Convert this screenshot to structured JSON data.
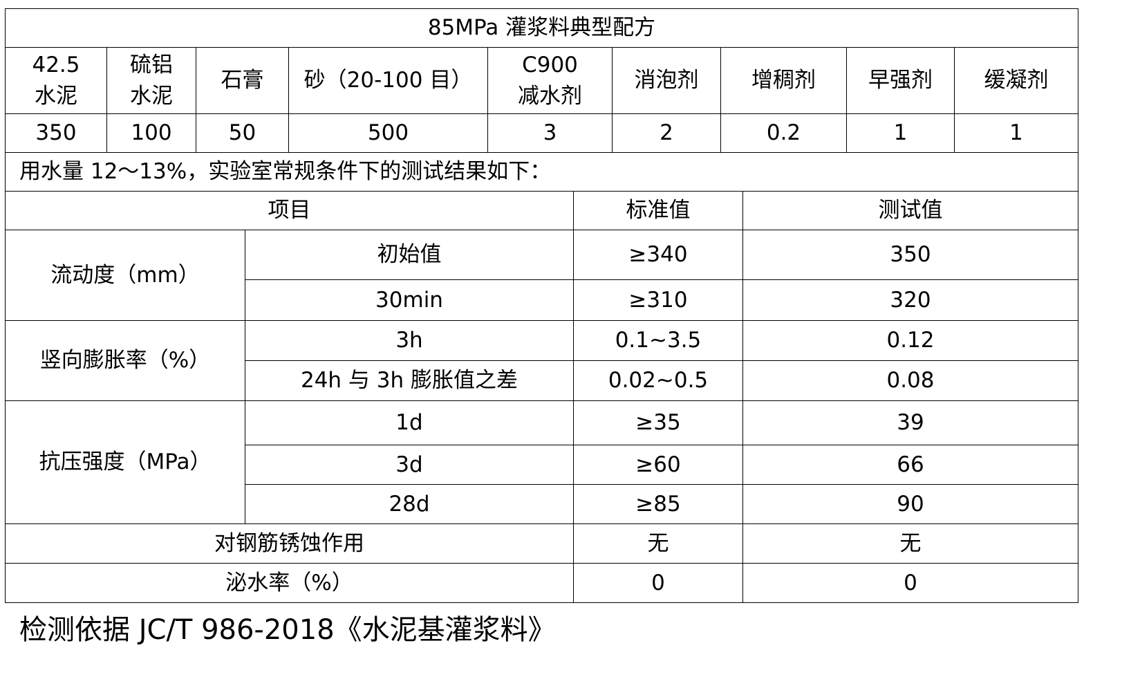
{
  "title": "85MPa 灌浆料典型配方",
  "formula": {
    "headers": [
      "42.5\n水泥",
      "硫铝\n水泥",
      "石膏",
      "砂（20-100 目）",
      "C900\n减水剂",
      "消泡剂",
      "增稠剂",
      "早强剂",
      "缓凝剂"
    ],
    "values": [
      "350",
      "100",
      "50",
      "500",
      "3",
      "2",
      "0.2",
      "1",
      "1"
    ]
  },
  "note": "用水量 12～13%，实验室常规条件下的测试结果如下：",
  "results": {
    "headers": [
      "项目",
      "标准值",
      "测试值"
    ],
    "groups": [
      {
        "label": "流动度（mm）",
        "rows": [
          [
            "初始值",
            "≥340",
            "350"
          ],
          [
            "30min",
            "≥310",
            "320"
          ]
        ]
      },
      {
        "label": "竖向膨胀率（%）",
        "rows": [
          [
            "3h",
            "0.1~3.5",
            "0.12"
          ],
          [
            "24h 与 3h 膨胀值之差",
            "0.02~0.5",
            "0.08"
          ]
        ]
      },
      {
        "label": "抗压强度（MPa）",
        "rows": [
          [
            "1d",
            "≥35",
            "39"
          ],
          [
            "3d",
            "≥60",
            "66"
          ],
          [
            "28d",
            "≥85",
            "90"
          ]
        ]
      }
    ],
    "single_rows": [
      [
        "对钢筋锈蚀作用",
        "无",
        "无"
      ],
      [
        "泌水率（%）",
        "0",
        "0"
      ]
    ]
  },
  "footer": "检测依据 JC/T 986-2018《水泥基灌浆料》"
}
